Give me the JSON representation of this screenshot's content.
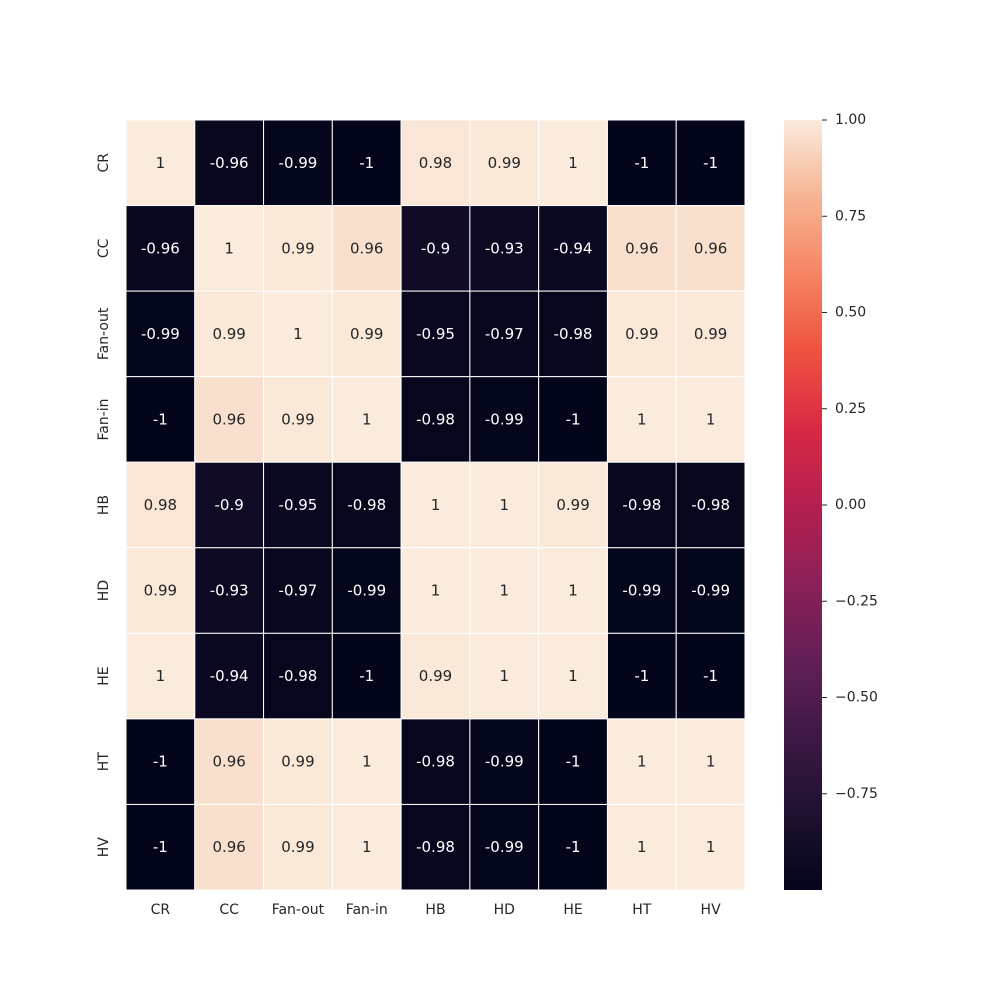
{
  "chart_data": {
    "type": "heatmap",
    "x_labels": [
      "CR",
      "CC",
      "Fan-out",
      "Fan-in",
      "HB",
      "HD",
      "HE",
      "HT",
      "HV"
    ],
    "y_labels": [
      "CR",
      "CC",
      "Fan-out",
      "Fan-in",
      "HB",
      "HD",
      "HE",
      "HT",
      "HV"
    ],
    "values": [
      [
        1,
        -0.96,
        -0.99,
        -1,
        0.98,
        0.99,
        1,
        -1,
        -1
      ],
      [
        -0.96,
        1,
        0.99,
        0.96,
        -0.9,
        -0.93,
        -0.94,
        0.96,
        0.96
      ],
      [
        -0.99,
        0.99,
        1,
        0.99,
        -0.95,
        -0.97,
        -0.98,
        0.99,
        0.99
      ],
      [
        -1,
        0.96,
        0.99,
        1,
        -0.98,
        -0.99,
        -1,
        1,
        1
      ],
      [
        0.98,
        -0.9,
        -0.95,
        -0.98,
        1,
        1,
        0.99,
        -0.98,
        -0.98
      ],
      [
        0.99,
        -0.93,
        -0.97,
        -0.99,
        1,
        1,
        1,
        -0.99,
        -0.99
      ],
      [
        1,
        -0.94,
        -0.98,
        -1,
        0.99,
        1,
        1,
        -1,
        -1
      ],
      [
        -1,
        0.96,
        0.99,
        1,
        -0.98,
        -0.99,
        -1,
        1,
        1
      ],
      [
        -1,
        0.96,
        0.99,
        1,
        -0.98,
        -0.99,
        -1,
        1,
        1
      ]
    ],
    "annotations": true,
    "colormap": "rocket",
    "vmin": -1,
    "vmax": 1,
    "colorbar_ticks": [
      1.0,
      0.75,
      0.5,
      0.25,
      0.0,
      -0.25,
      -0.5,
      -0.75
    ],
    "colorbar_tick_labels": [
      "1.00",
      "0.75",
      "0.50",
      "0.25",
      "0.00",
      "−0.25",
      "−0.50",
      "−0.75"
    ],
    "title": "",
    "xlabel": "",
    "ylabel": ""
  }
}
